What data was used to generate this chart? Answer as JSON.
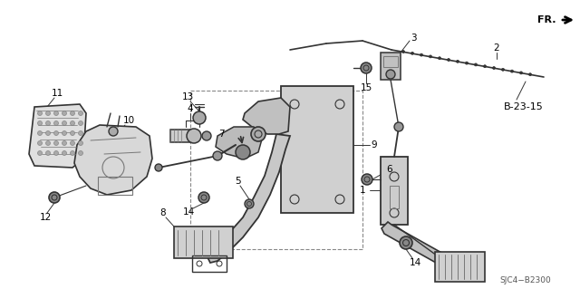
{
  "background_color": "#ffffff",
  "diagram_note": "SJC4−B2300",
  "fr_label": "FR.",
  "b_label": "B-23-15",
  "figsize": [
    6.4,
    3.19
  ],
  "dpi": 100,
  "lc": "#333333",
  "lc_light": "#777777"
}
